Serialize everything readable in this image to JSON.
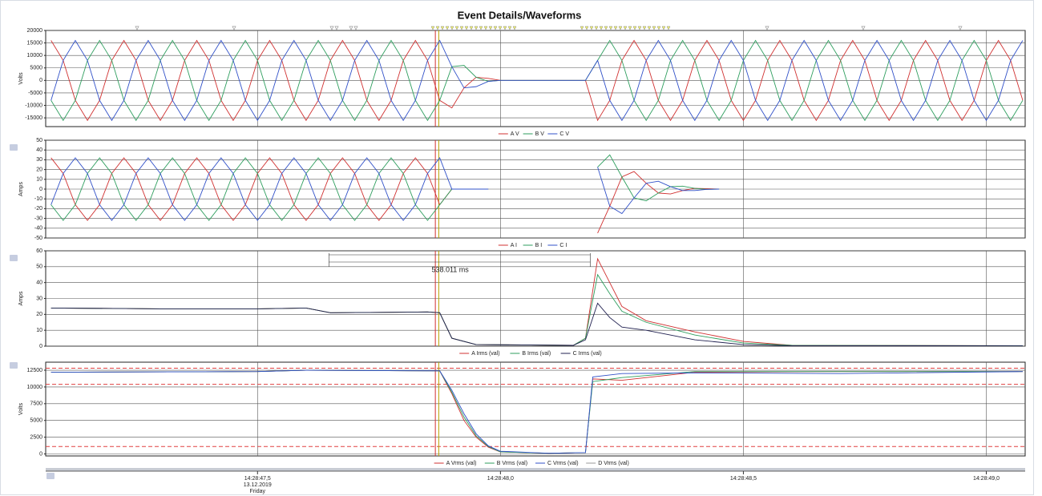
{
  "title": "Event Details/Waveforms",
  "cursors": [
    {
      "value": 47.866,
      "color": "#d03030"
    },
    {
      "value": 47.873,
      "color": "#b8a000"
    }
  ],
  "time_axis": {
    "xlim": [
      47.064,
      49.08
    ],
    "xticks": [
      {
        "value": 47.5,
        "label": "14:28:47,5"
      },
      {
        "value": 48,
        "label": "14:28:48,0"
      },
      {
        "value": 48.5,
        "label": "14:28:48,5"
      },
      {
        "value": 49,
        "label": "14:28:49,0"
      }
    ],
    "date": "13.12.2019",
    "day": "Friday"
  },
  "chart_data": [
    {
      "type": "line",
      "y_label": "Volts",
      "xlim": [
        47.064,
        49.08
      ],
      "ylim": [
        -18500,
        20000
      ],
      "yticks": [
        20000,
        15000,
        10000,
        5000,
        0,
        -5000,
        -10000,
        -15000
      ],
      "xticks": [
        47.5,
        48,
        48.5,
        49
      ],
      "grid": true,
      "x": [
        47.075,
        47.1,
        47.125,
        47.15,
        47.175,
        47.2,
        47.225,
        47.25,
        47.275,
        47.3,
        47.325,
        47.35,
        47.375,
        47.4,
        47.425,
        47.45,
        47.475,
        47.5,
        47.525,
        47.55,
        47.575,
        47.6,
        47.625,
        47.65,
        47.675,
        47.7,
        47.725,
        47.75,
        47.775,
        47.8,
        47.825,
        47.85,
        47.875,
        47.9,
        47.925,
        47.95,
        47.975,
        48,
        48.025,
        48.05,
        48.075,
        48.1,
        48.125,
        48.15,
        48.175,
        48.2,
        48.225,
        48.25,
        48.275,
        48.3,
        48.325,
        48.35,
        48.375,
        48.4,
        48.425,
        48.45,
        48.475,
        48.5,
        48.525,
        48.55,
        48.575,
        48.6,
        48.625,
        48.65,
        48.675,
        48.7,
        48.725,
        48.75,
        48.775,
        48.8,
        48.825,
        48.85,
        48.875,
        48.9,
        48.925,
        48.95,
        48.975,
        49,
        49.025,
        49.05,
        49.075
      ],
      "series": [
        {
          "name": "A V",
          "color": "#d03030",
          "values": [
            16000,
            8000,
            -8000,
            -16000,
            -8000,
            8000,
            16000,
            8000,
            -8000,
            -16000,
            -8000,
            8000,
            16000,
            8000,
            -8000,
            -16000,
            -8000,
            8000,
            16000,
            8000,
            -8000,
            -16000,
            -8000,
            8000,
            16000,
            8000,
            -8000,
            -16000,
            -8000,
            8000,
            16000,
            8000,
            -8000,
            -11000,
            -3000,
            1250,
            800,
            0,
            0,
            0,
            0,
            0,
            0,
            0,
            0,
            -16000,
            -8000,
            8000,
            16000,
            8000,
            -8000,
            -16000,
            -8000,
            8000,
            16000,
            8000,
            -8000,
            -16000,
            -8000,
            8000,
            16000,
            8000,
            -8000,
            -16000,
            -8000,
            8000,
            16000,
            8000,
            -8000,
            -16000,
            -8000,
            8000,
            16000,
            8000,
            -8000,
            -16000,
            -8000,
            8000,
            16000,
            8000,
            -8000
          ]
        },
        {
          "name": "B V",
          "color": "#2e9e5e",
          "values": [
            -8000,
            -16000,
            -8000,
            8000,
            16000,
            8000,
            -8000,
            -16000,
            -8000,
            8000,
            16000,
            8000,
            -8000,
            -16000,
            -8000,
            8000,
            16000,
            8000,
            -8000,
            -16000,
            -8000,
            8000,
            16000,
            8000,
            -8000,
            -16000,
            -8000,
            8000,
            16000,
            8000,
            -8000,
            -16000,
            -8000,
            5500,
            6000,
            1250,
            -400,
            0,
            0,
            0,
            0,
            0,
            0,
            0,
            0,
            8000,
            16000,
            8000,
            -8000,
            -16000,
            -8000,
            8000,
            16000,
            8000,
            -8000,
            -16000,
            -8000,
            8000,
            16000,
            8000,
            -8000,
            -16000,
            -8000,
            8000,
            16000,
            8000,
            -8000,
            -16000,
            -8000,
            8000,
            16000,
            8000,
            -8000,
            -16000,
            -8000,
            8000,
            16000,
            8000,
            -8000,
            -16000,
            -8000
          ]
        },
        {
          "name": "C V",
          "color": "#3050c8",
          "values": [
            -8000,
            8000,
            16000,
            8000,
            -8000,
            -16000,
            -8000,
            8000,
            16000,
            8000,
            -8000,
            -16000,
            -8000,
            8000,
            16000,
            8000,
            -8000,
            -16000,
            -8000,
            8000,
            16000,
            8000,
            -8000,
            -16000,
            -8000,
            8000,
            16000,
            8000,
            -8000,
            -16000,
            -8000,
            8000,
            16000,
            5500,
            -3000,
            -2500,
            -400,
            0,
            0,
            0,
            0,
            0,
            0,
            0,
            0,
            8000,
            -8000,
            -16000,
            -8000,
            8000,
            16000,
            8000,
            -8000,
            -16000,
            -8000,
            8000,
            16000,
            8000,
            -8000,
            -16000,
            -8000,
            8000,
            16000,
            8000,
            -8000,
            -16000,
            -8000,
            8000,
            16000,
            8000,
            -8000,
            -16000,
            -8000,
            8000,
            16000,
            8000,
            -8000,
            -16000,
            -8000,
            8000,
            16000
          ]
        }
      ]
    },
    {
      "type": "line",
      "y_label": "Amps",
      "xlim": [
        47.064,
        49.08
      ],
      "ylim": [
        -50,
        50
      ],
      "yticks": [
        50,
        40,
        30,
        20,
        10,
        0,
        -10,
        -20,
        -30,
        -40,
        -50
      ],
      "xticks": [
        47.5,
        48,
        48.5,
        49
      ],
      "grid": true,
      "x": [
        47.075,
        47.1,
        47.125,
        47.15,
        47.175,
        47.2,
        47.225,
        47.25,
        47.275,
        47.3,
        47.325,
        47.35,
        47.375,
        47.4,
        47.425,
        47.45,
        47.475,
        47.5,
        47.525,
        47.55,
        47.575,
        47.6,
        47.625,
        47.65,
        47.675,
        47.7,
        47.725,
        47.75,
        47.775,
        47.8,
        47.825,
        47.85,
        47.875,
        47.9,
        47.925,
        47.95,
        47.975,
        48,
        48.025,
        48.05,
        48.075,
        48.1,
        48.125,
        48.15,
        48.175,
        48.2,
        48.225,
        48.25,
        48.275,
        48.3,
        48.325,
        48.35,
        48.375,
        48.4,
        48.425,
        48.45,
        48.475,
        48.5,
        48.525,
        48.55,
        48.575,
        48.6,
        48.625,
        48.65,
        48.675,
        48.7,
        48.725,
        48.75,
        48.775,
        48.8,
        48.825,
        48.85,
        48.875,
        48.9,
        48.925,
        48.95,
        48.975,
        49,
        49.025,
        49.05,
        49.075
      ],
      "series": [
        {
          "name": "A I",
          "color": "#d03030",
          "values": [
            32,
            16,
            -16,
            -32,
            -16,
            16,
            32,
            16,
            -16,
            -32,
            -16,
            16,
            32,
            16,
            -16,
            -32,
            -16,
            16,
            32,
            16,
            -16,
            -32,
            -16,
            16,
            32,
            16,
            -16,
            -32,
            -16,
            16,
            32,
            16,
            -16,
            0,
            0,
            0,
            0,
            null,
            null,
            null,
            null,
            null,
            null,
            null,
            null,
            -45,
            -17.5,
            12.5,
            18,
            6,
            -4,
            -5,
            -1.5,
            0.75,
            0.5,
            0,
            null,
            null,
            null,
            null,
            null,
            null,
            null,
            null,
            null,
            null,
            null,
            null,
            null,
            null,
            null,
            null,
            null,
            null,
            null,
            null,
            null,
            null,
            null,
            null,
            null
          ]
        },
        {
          "name": "B I",
          "color": "#2e9e5e",
          "values": [
            -16,
            -32,
            -16,
            16,
            32,
            16,
            -16,
            -32,
            -16,
            16,
            32,
            16,
            -16,
            -32,
            -16,
            16,
            32,
            16,
            -16,
            -32,
            -16,
            16,
            32,
            16,
            -16,
            -32,
            -16,
            16,
            32,
            16,
            -16,
            -32,
            -16,
            0,
            0,
            0,
            0,
            null,
            null,
            null,
            null,
            null,
            null,
            null,
            null,
            22.5,
            35,
            12.5,
            -9,
            -12,
            -4,
            2.5,
            3,
            0.75,
            -0.25,
            0,
            null,
            null,
            null,
            null,
            null,
            null,
            null,
            null,
            null,
            null,
            null,
            null,
            null,
            null,
            null,
            null,
            null,
            null,
            null,
            null,
            null,
            null,
            null,
            null,
            null
          ]
        },
        {
          "name": "C I",
          "color": "#3050c8",
          "values": [
            -16,
            16,
            32,
            16,
            -16,
            -32,
            -16,
            16,
            32,
            16,
            -16,
            -32,
            -16,
            16,
            32,
            16,
            -16,
            -32,
            -16,
            16,
            32,
            16,
            -16,
            -32,
            -16,
            16,
            32,
            16,
            -16,
            -32,
            -16,
            16,
            32,
            0,
            0,
            0,
            0,
            null,
            null,
            null,
            null,
            null,
            null,
            null,
            null,
            22.5,
            -17.5,
            -25,
            -9,
            6,
            8,
            2.5,
            -1.5,
            -1.5,
            -0.25,
            0,
            null,
            null,
            null,
            null,
            null,
            null,
            null,
            null,
            null,
            null,
            null,
            null,
            null,
            null,
            null,
            null,
            null,
            null,
            null,
            null,
            null,
            null,
            null,
            null,
            null
          ]
        }
      ]
    },
    {
      "type": "line",
      "y_label": "Amps",
      "xlim": [
        47.064,
        49.08
      ],
      "ylim": [
        0,
        60
      ],
      "yticks": [
        60,
        50,
        40,
        30,
        20,
        10,
        0
      ],
      "xticks": [
        47.5,
        48,
        48.5,
        49
      ],
      "grid": true,
      "measurement": {
        "label": "538.011 ms",
        "x": [
          47.647,
          48.185
        ]
      },
      "x": [
        47.075,
        47.3,
        47.5,
        47.6,
        47.65,
        47.85,
        47.875,
        47.9,
        47.95,
        48.15,
        48.175,
        48.2,
        48.225,
        48.25,
        48.3,
        48.4,
        48.5,
        48.6,
        49.075
      ],
      "series": [
        {
          "name": "A Irms (val)",
          "color": "#d03030",
          "values": [
            24,
            23.5,
            23.5,
            24,
            21,
            21.5,
            21,
            5,
            1,
            0.5,
            5,
            55,
            40,
            25,
            16,
            9,
            3,
            0.5,
            0.3
          ]
        },
        {
          "name": "B Irms (val)",
          "color": "#2e9e5e",
          "values": [
            24,
            23.5,
            23.5,
            24,
            21,
            21.5,
            21,
            5,
            1,
            0.5,
            5,
            45,
            33,
            22,
            15,
            7,
            2,
            0.5,
            0.3
          ]
        },
        {
          "name": "C Irms (val)",
          "color": "#202050",
          "values": [
            24,
            23.5,
            23.5,
            24,
            21,
            21.5,
            21,
            5,
            1,
            0.5,
            4,
            27,
            18,
            12,
            10,
            4,
            1,
            0.3,
            0.2
          ]
        }
      ]
    },
    {
      "type": "line",
      "y_label": "Volts",
      "xlim": [
        47.064,
        49.08
      ],
      "ylim": [
        -300,
        13700
      ],
      "yticks": [
        12500,
        10000,
        7500,
        5000,
        2500,
        0
      ],
      "xticks": [
        47.5,
        48,
        48.5,
        49
      ],
      "grid": true,
      "reference_lines": [
        12800,
        10400,
        1100
      ],
      "reference_color": "#e04040",
      "x": [
        47.075,
        47.5,
        47.6,
        47.875,
        47.9,
        47.925,
        47.95,
        47.975,
        48,
        48.1,
        48.175,
        48.19,
        48.25,
        48.4,
        48.7,
        49.075
      ],
      "series": [
        {
          "name": "A Vrms (val)",
          "color": "#d03030",
          "values": [
            12200,
            12300,
            12500,
            12400,
            9000,
            5000,
            2500,
            1000,
            300,
            100,
            200,
            11200,
            11000,
            12200,
            12300,
            12300
          ]
        },
        {
          "name": "B Vrms (val)",
          "color": "#2e9e5e",
          "values": [
            12200,
            12300,
            12500,
            12400,
            9200,
            5500,
            2700,
            1100,
            300,
            100,
            200,
            10800,
            11400,
            12300,
            12300,
            12300
          ]
        },
        {
          "name": "C Vrms (val)",
          "color": "#3050c8",
          "values": [
            12200,
            12300,
            12500,
            12400,
            9500,
            6000,
            3000,
            1200,
            400,
            100,
            200,
            11500,
            12000,
            12100,
            12000,
            12300
          ]
        },
        {
          "name": "D Vrms (val)",
          "color": "#999999",
          "values": [
            null,
            null,
            null,
            null,
            null,
            null,
            null,
            null,
            null,
            null,
            null,
            null,
            null,
            null,
            null,
            null
          ]
        }
      ]
    }
  ]
}
